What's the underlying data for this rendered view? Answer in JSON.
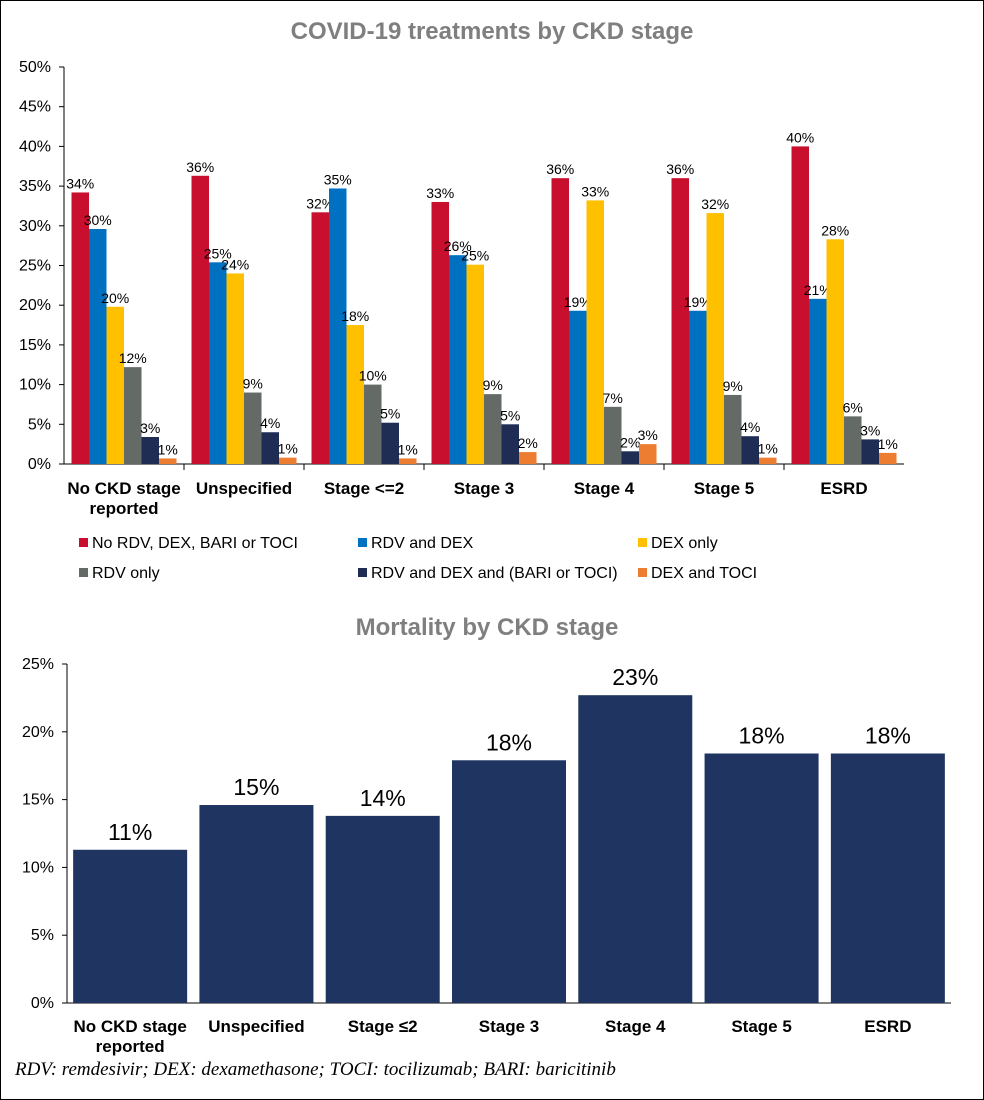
{
  "chart_data": [
    {
      "type": "bar",
      "title": "COVID-19 treatments by CKD stage",
      "categories": [
        [
          "No CKD stage",
          "reported"
        ],
        [
          "Unspecified"
        ],
        [
          "Stage <=2"
        ],
        [
          "Stage 3"
        ],
        [
          "Stage 4"
        ],
        [
          "Stage 5"
        ],
        [
          "ESRD"
        ]
      ],
      "ylim": [
        0,
        50
      ],
      "yticks": [
        0,
        5,
        10,
        15,
        20,
        25,
        30,
        35,
        40,
        45,
        50
      ],
      "tick_suffix": "%",
      "legend_position": "bottom",
      "series": [
        {
          "name": "No RDV, DEX, BARI or TOCI",
          "color": "#c8102e",
          "values": [
            34.2,
            36.3,
            31.7,
            33.0,
            36.0,
            36.0,
            40.0
          ],
          "labels": [
            "34%",
            "36%",
            "32%",
            "33%",
            "36%",
            "36%",
            "40%"
          ]
        },
        {
          "name": "RDV and DEX",
          "color": "#0070c0",
          "values": [
            29.6,
            25.4,
            34.7,
            26.3,
            19.3,
            19.3,
            20.8
          ],
          "labels": [
            "30%",
            "25%",
            "35%",
            "26%",
            "19%",
            "19%",
            "21%"
          ]
        },
        {
          "name": "DEX only",
          "color": "#ffc000",
          "values": [
            19.8,
            24.0,
            17.5,
            25.1,
            33.2,
            31.6,
            28.3
          ],
          "labels": [
            "20%",
            "24%",
            "18%",
            "25%",
            "33%",
            "32%",
            "28%"
          ]
        },
        {
          "name": "RDV only",
          "color": "#646a66",
          "values": [
            12.2,
            9.0,
            10.0,
            8.8,
            7.2,
            8.7,
            6.0
          ],
          "labels": [
            "12%",
            "9%",
            "10%",
            "9%",
            "7%",
            "9%",
            "6%"
          ]
        },
        {
          "name": "RDV and DEX and (BARI or TOCI)",
          "color": "#1f2d55",
          "values": [
            3.4,
            4.0,
            5.2,
            5.0,
            1.6,
            3.5,
            3.1
          ],
          "labels": [
            "3%",
            "4%",
            "5%",
            "5%",
            "2%",
            "4%",
            "3%"
          ]
        },
        {
          "name": "DEX and TOCI",
          "color": "#ed7d31",
          "values": [
            0.7,
            0.8,
            0.7,
            1.5,
            2.5,
            0.8,
            1.4
          ],
          "labels": [
            "1%",
            "1%",
            "1%",
            "2%",
            "3%",
            "1%",
            "1%"
          ]
        }
      ]
    },
    {
      "type": "bar",
      "title": "Mortality by CKD stage",
      "categories": [
        [
          "No CKD stage",
          "reported"
        ],
        [
          "Unspecified"
        ],
        [
          "Stage ≤2"
        ],
        [
          "Stage 3"
        ],
        [
          "Stage 4"
        ],
        [
          "Stage 5"
        ],
        [
          "ESRD"
        ]
      ],
      "ylim": [
        0,
        25
      ],
      "yticks": [
        0,
        5,
        10,
        15,
        20,
        25
      ],
      "tick_suffix": "%",
      "series": [
        {
          "color": "#1f3461",
          "values": [
            11.3,
            14.6,
            13.8,
            17.9,
            22.7,
            18.4,
            18.4
          ],
          "labels": [
            "11%",
            "15%",
            "14%",
            "18%",
            "23%",
            "18%",
            "18%"
          ]
        }
      ]
    }
  ],
  "footnote": "RDV: remdesivir; DEX: dexamethasone; TOCI: tocilizumab; BARI: baricitinib"
}
